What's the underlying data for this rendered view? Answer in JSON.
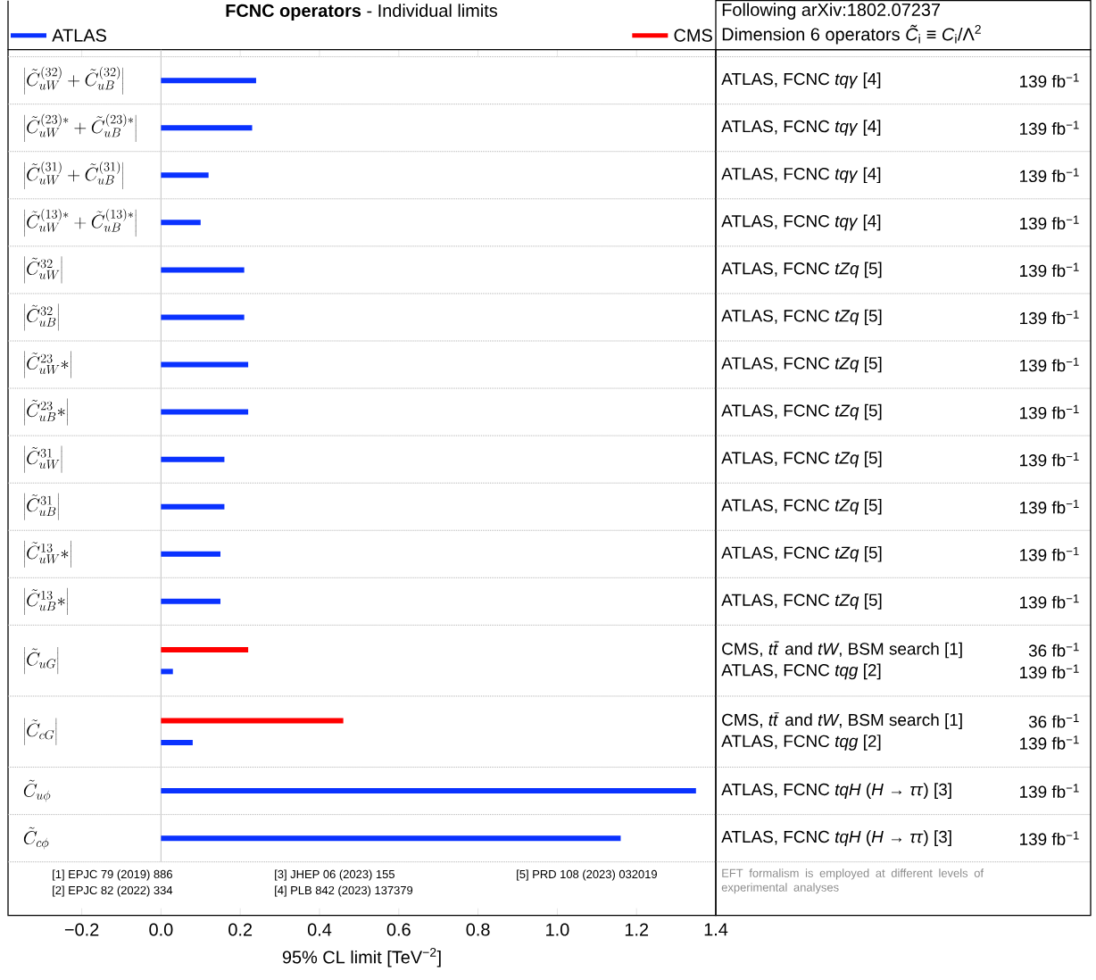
{
  "chart_data": {
    "type": "bar",
    "orientation": "horizontal",
    "title": "**FCNC operators** - Individual limits",
    "xlabel": "95% CL limit [TeV$^{−2}$]",
    "categories": [
      "\\left|\\tilde{C}^{(32)}_{uW} + \\tilde{C}^{(32)}_{uB}\\right|",
      "\\left|\\tilde{C}^{(23)*}_{uW} + \\tilde{C}^{(23)*}_{uB}\\right|",
      "\\left|\\tilde{C}^{(31)}_{uW} + \\tilde{C}^{(31)}_{uB}\\right|",
      "\\left|\\tilde{C}^{(13)*}_{uW} + \\tilde{C}^{(13)*}_{uB}\\right|",
      "\\left|\\tilde{C}^{32}_{uW}\\right|",
      "\\left|\\tilde{C}^{32}_{uB}\\right|",
      "\\left|\\tilde{C}^{23}_{uW}*\\right|",
      "\\left|\\tilde{C}^{23}_{uB}*\\right|",
      "\\left|\\tilde{C}^{31}_{uW}\\right|",
      "\\left|\\tilde{C}^{31}_{uB}\\right|",
      "\\left|\\tilde{C}^{13}_{uW}*\\right|",
      "\\left|\\tilde{C}^{13}_{uB}*\\right|",
      "\\left|\\tilde{C}_{uG}\\right|",
      "\\left|\\tilde{C}_{cG}\\right|",
      "\\tilde{C}_{u\\phi}",
      "\\tilde{C}_{c\\phi}"
    ],
    "series": [
      {
        "name": "ATLAS",
        "color": "#0a32ff",
        "values": [
          0.24,
          0.23,
          0.12,
          0.1,
          0.21,
          0.21,
          0.22,
          0.22,
          0.16,
          0.16,
          0.15,
          0.15,
          0.03,
          0.08,
          1.35,
          1.16
        ]
      },
      {
        "name": "CMS",
        "color": "#ff0000",
        "values": [
          null,
          null,
          null,
          null,
          null,
          null,
          null,
          null,
          null,
          null,
          null,
          null,
          0.22,
          0.46,
          null,
          null
        ]
      }
    ],
    "xlim": [
      -0.386,
      1.4
    ],
    "xticks": [
      {
        "value": -0.2,
        "label": "−0.2"
      },
      {
        "value": 0,
        "label": "0.0"
      },
      {
        "value": 0.2,
        "label": "0.2"
      },
      {
        "value": 0.4,
        "label": "0.4"
      },
      {
        "value": 0.6,
        "label": "0.6"
      },
      {
        "value": 0.8,
        "label": "0.8"
      },
      {
        "value": 1.0,
        "label": "1.0"
      },
      {
        "value": 1.2,
        "label": "1.2"
      },
      {
        "value": 1.4,
        "label": "1.4"
      }
    ],
    "ref_lines": [
      {
        "axis": "x",
        "value": 0,
        "color": "#cccccc"
      }
    ],
    "legend": "top",
    "annotations": [
      "Following arXiv:1802.07237",
      "Dimension 6 operators *C̃*$_{i}$ ≡ *C*$_{i}$/Λ$^{2}$",
      "ATLAS, FCNC *tqγ* [4]",
      "139 fb$^{−1}$",
      "ATLAS, FCNC *tqγ* [4]",
      "139 fb$^{−1}$",
      "ATLAS, FCNC *tqγ* [4]",
      "139 fb$^{−1}$",
      "ATLAS, FCNC *tqγ* [4]",
      "139 fb$^{−1}$",
      "ATLAS, FCNC *tZq* [5]",
      "139 fb$^{−1}$",
      "ATLAS, FCNC *tZq* [5]",
      "139 fb$^{−1}$",
      "ATLAS, FCNC *tZq* [5]",
      "139 fb$^{−1}$",
      "ATLAS, FCNC *tZq* [5]",
      "139 fb$^{−1}$",
      "ATLAS, FCNC *tZq* [5]",
      "139 fb$^{−1}$",
      "ATLAS, FCNC *tZq* [5]",
      "139 fb$^{−1}$",
      "ATLAS, FCNC *tZq* [5]",
      "139 fb$^{−1}$",
      "ATLAS, FCNC *tZq* [5]",
      "139 fb$^{−1}$",
      "CMS, *tt̄* and *tW*, BSM search [1]",
      "36 fb$^{−1}$",
      "ATLAS, FCNC *tqg* [2]",
      "139 fb$^{−1}$",
      "CMS, *tt̄* and *tW*, BSM search [1]",
      "36 fb$^{−1}$",
      "ATLAS, FCNC *tqg* [2]",
      "139 fb$^{−1}$",
      "ATLAS, FCNC *tqH* (*H* → *ττ*) [3]",
      "139 fb$^{−1}$",
      "ATLAS, FCNC *tqH* (*H* → *ττ*) [3]",
      "139 fb$^{−1}$",
      "[1] EPJC 79 (2019) 886",
      "[2] EPJC 82 (2022) 334",
      "[3] JHEP 06 (2023) 155",
      "[4] PLB 842 (2023) 137379",
      "[5] PRD 108 (2023) 032019",
      "EFT formalism is employed at different levels of experimental analyses"
    ]
  }
}
